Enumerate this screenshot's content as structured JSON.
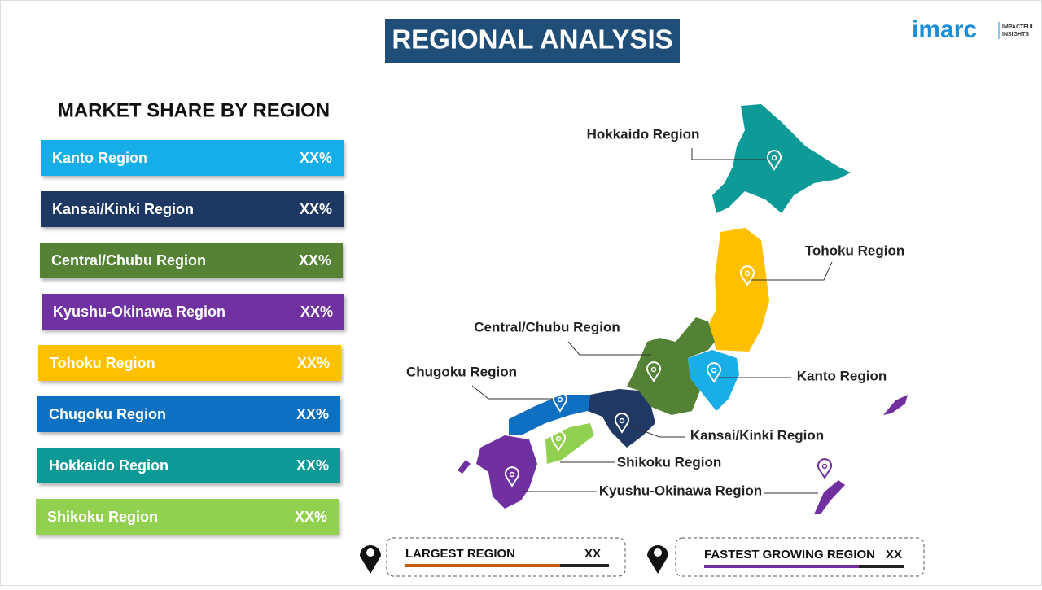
{
  "header": {
    "title": "REGIONAL ANALYSIS"
  },
  "logo": {
    "brand": "imarc",
    "tagline_1": "IMPACTFUL",
    "tagline_2": "INSIGHTS"
  },
  "panel": {
    "title": "MARKET SHARE BY REGION",
    "rows": [
      {
        "label": "Kanto Region",
        "value": "XX%",
        "color": "#19aee8"
      },
      {
        "label": "Kansai/Kinki Region",
        "value": "XX%",
        "color": "#1f3864"
      },
      {
        "label": "Central/Chubu Region",
        "value": "XX%",
        "color": "#548235"
      },
      {
        "label": "Kyushu-Okinawa Region",
        "value": "XX%",
        "color": "#7030a0"
      },
      {
        "label": "Tohoku Region",
        "value": "XX%",
        "color": "#ffc000"
      },
      {
        "label": "Chugoku Region",
        "value": "XX%",
        "color": "#0f6fc0"
      },
      {
        "label": "Hokkaido Region",
        "value": "XX%",
        "color": "#0e9a96"
      },
      {
        "label": "Shikoku Region",
        "value": "XX%",
        "color": "#92d050"
      }
    ]
  },
  "map": {
    "labels": [
      "Hokkaido Region",
      "Tohoku Region",
      "Central/Chubu Region",
      "Chugoku Region",
      "Kanto Region",
      "Kansai/Kinki Region",
      "Shikoku Region",
      "Kyushu-Okinawa Region"
    ]
  },
  "footer": {
    "largest": {
      "label": "LARGEST REGION",
      "value": "XX"
    },
    "fastest": {
      "label": "FASTEST GROWING REGION",
      "value": "XX"
    }
  }
}
